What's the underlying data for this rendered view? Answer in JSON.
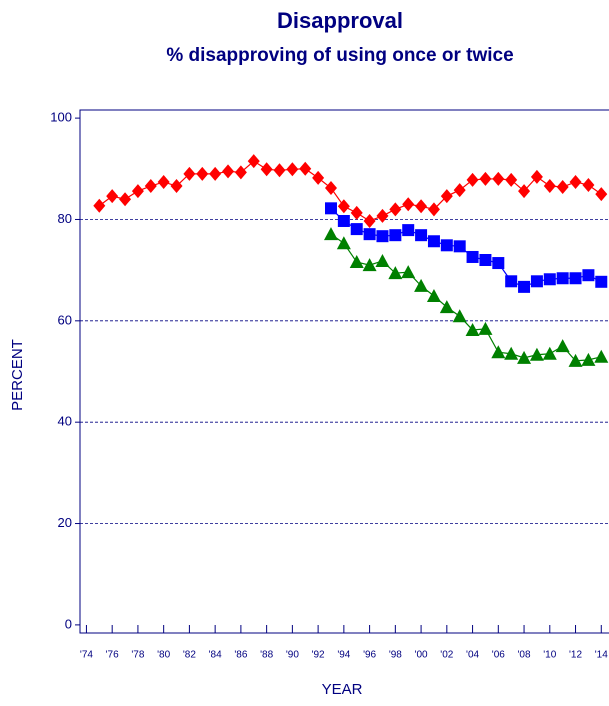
{
  "chart_data": {
    "type": "line",
    "title": "Disapproval",
    "subtitle": "% disapproving of using once or twice",
    "x_label": "YEAR",
    "y_label": "PERCENT",
    "xlim": [
      1973.5,
      2014.6
    ],
    "ylim": [
      -1.6,
      101.6
    ],
    "yticks": [
      0,
      20,
      40,
      60,
      80,
      100
    ],
    "xticks": [
      {
        "value": 1974,
        "label": "'74"
      },
      {
        "value": 1976,
        "label": "'76"
      },
      {
        "value": 1978,
        "label": "'78"
      },
      {
        "value": 1980,
        "label": "'80"
      },
      {
        "value": 1982,
        "label": "'82"
      },
      {
        "value": 1984,
        "label": "'84"
      },
      {
        "value": 1986,
        "label": "'86"
      },
      {
        "value": 1988,
        "label": "'88"
      },
      {
        "value": 1990,
        "label": "'90"
      },
      {
        "value": 1992,
        "label": "'92"
      },
      {
        "value": 1994,
        "label": "'94"
      },
      {
        "value": 1996,
        "label": "'96"
      },
      {
        "value": 1998,
        "label": "'98"
      },
      {
        "value": 2000,
        "label": "'00"
      },
      {
        "value": 2002,
        "label": "'02"
      },
      {
        "value": 2004,
        "label": "'04"
      },
      {
        "value": 2006,
        "label": "'06"
      },
      {
        "value": 2008,
        "label": "'08"
      },
      {
        "value": 2010,
        "label": "'10"
      },
      {
        "value": 2012,
        "label": "'12"
      },
      {
        "value": 2014,
        "label": "'14"
      }
    ],
    "grid": true,
    "series": [
      {
        "color": "#ff0000",
        "marker": "diamond",
        "x": [
          1975,
          1976,
          1977,
          1978,
          1979,
          1980,
          1981,
          1982,
          1983,
          1984,
          1985,
          1986,
          1987,
          1988,
          1989,
          1990,
          1991,
          1992,
          1993,
          1994,
          1995,
          1996,
          1997,
          1998,
          1999,
          2000,
          2001,
          2002,
          2003,
          2004,
          2005,
          2006,
          2007,
          2008,
          2009,
          2010,
          2011,
          2012,
          2013,
          2014
        ],
        "values": [
          82.7,
          84.6,
          84.0,
          85.6,
          86.6,
          87.4,
          86.6,
          89.0,
          89.0,
          89.0,
          89.5,
          89.3,
          91.5,
          89.9,
          89.7,
          89.9,
          90.0,
          88.2,
          86.2,
          82.6,
          81.3,
          79.7,
          80.7,
          82.0,
          83.0,
          82.6,
          82.0,
          84.6,
          85.8,
          87.8,
          88.0,
          88.0,
          87.8,
          85.6,
          88.4,
          86.6,
          86.4,
          87.4,
          86.8,
          85.0
        ]
      },
      {
        "color": "#0000ff",
        "marker": "square",
        "x": [
          1993,
          1994,
          1995,
          1996,
          1997,
          1998,
          1999,
          2000,
          2001,
          2002,
          2003,
          2004,
          2005,
          2006,
          2007,
          2008,
          2009,
          2010,
          2011,
          2012,
          2013,
          2014
        ],
        "values": [
          82.2,
          79.7,
          78.1,
          77.1,
          76.7,
          76.9,
          77.9,
          76.9,
          75.7,
          74.9,
          74.7,
          72.6,
          72.0,
          71.4,
          67.8,
          66.7,
          67.8,
          68.2,
          68.4,
          68.4,
          69.0,
          67.7
        ]
      },
      {
        "color": "#008000",
        "marker": "triangle",
        "x": [
          1993,
          1994,
          1995,
          1996,
          1997,
          1998,
          1999,
          2000,
          2001,
          2002,
          2003,
          2004,
          2005,
          2006,
          2007,
          2008,
          2009,
          2010,
          2011,
          2012,
          2013,
          2014
        ],
        "values": [
          77.1,
          75.3,
          71.6,
          71.0,
          71.8,
          69.4,
          69.6,
          66.9,
          64.9,
          62.7,
          60.9,
          58.2,
          58.4,
          53.8,
          53.5,
          52.7,
          53.3,
          53.5,
          55.0,
          52.1,
          52.3,
          52.9
        ]
      }
    ]
  }
}
